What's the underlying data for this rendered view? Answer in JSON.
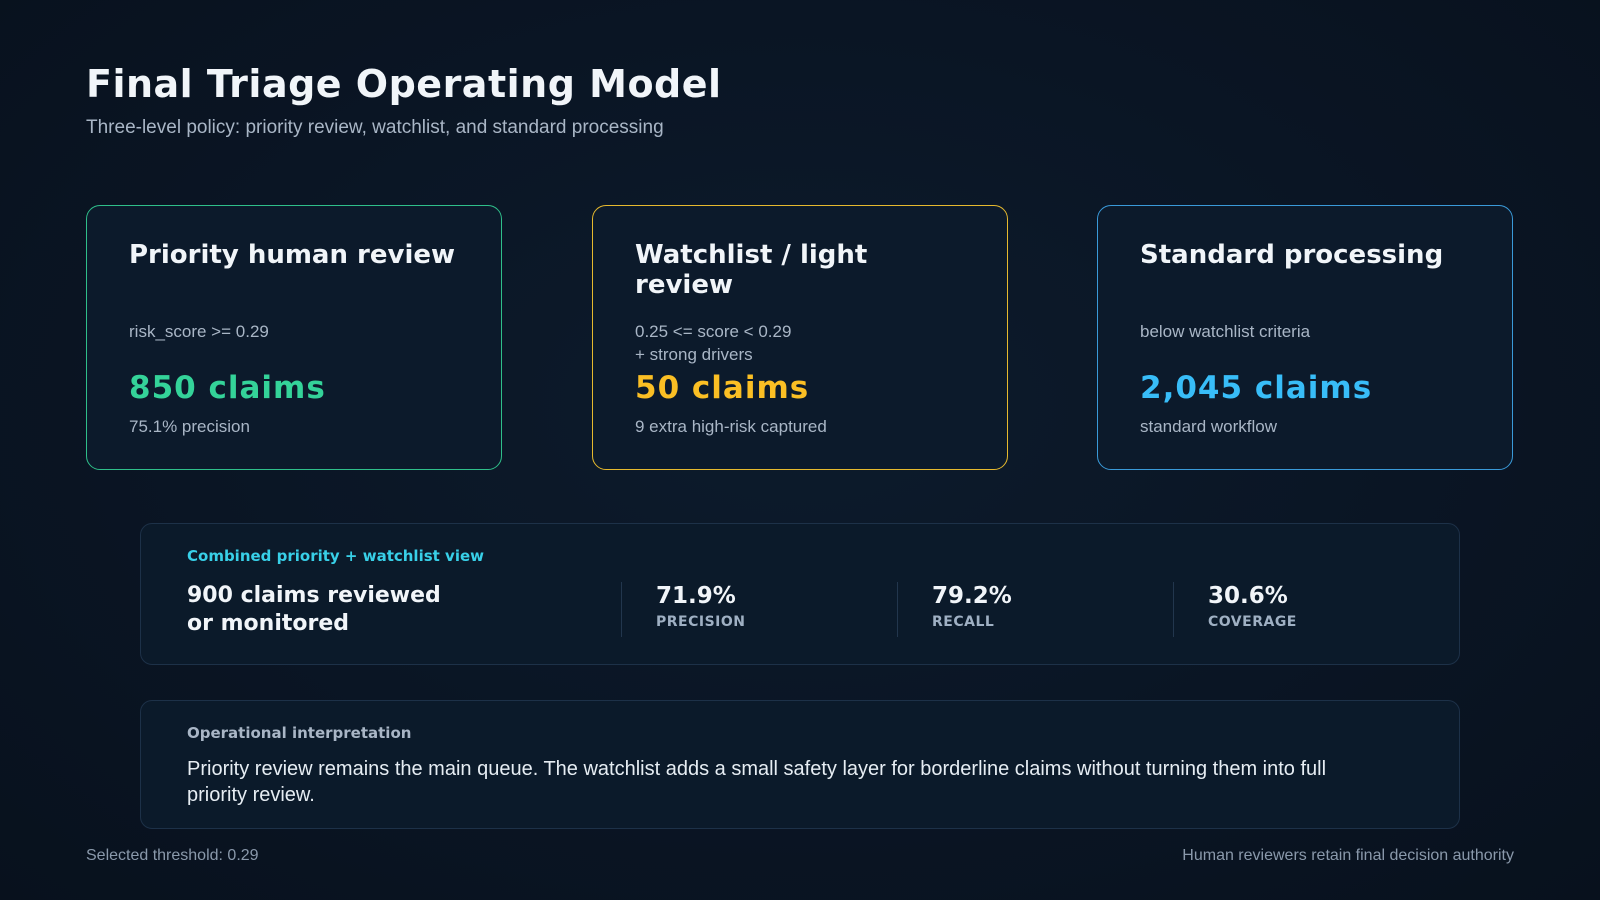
{
  "header": {
    "title": "Final Triage Operating Model",
    "subtitle": "Three-level policy: priority review, watchlist, and standard processing"
  },
  "cards": [
    {
      "title": "Priority human review",
      "criteria": "risk_score >= 0.29",
      "count": "850 claims",
      "note": "75.1% precision",
      "accent_color": "#34d399"
    },
    {
      "title": "Watchlist / light review",
      "criteria": "0.25 <= score < 0.29\n+ strong drivers",
      "count": "50 claims",
      "note": "9 extra high-risk captured",
      "accent_color": "#fbbf24"
    },
    {
      "title": "Standard processing",
      "criteria": "below watchlist criteria",
      "count": "2,045 claims",
      "note": "standard workflow",
      "accent_color": "#38bdf8"
    }
  ],
  "combined": {
    "label": "Combined priority + watchlist view",
    "main": "900 claims reviewed\nor monitored",
    "metrics": [
      {
        "value": "71.9%",
        "label": "PRECISION"
      },
      {
        "value": "79.2%",
        "label": "RECALL"
      },
      {
        "value": "30.6%",
        "label": "COVERAGE"
      }
    ]
  },
  "interpretation": {
    "label": "Operational interpretation",
    "text": "Priority review remains the main queue. The watchlist adds a small safety layer for borderline claims without turning them into full priority review."
  },
  "footer": {
    "left": "Selected threshold: 0.29",
    "right": "Human reviewers retain final decision authority"
  }
}
